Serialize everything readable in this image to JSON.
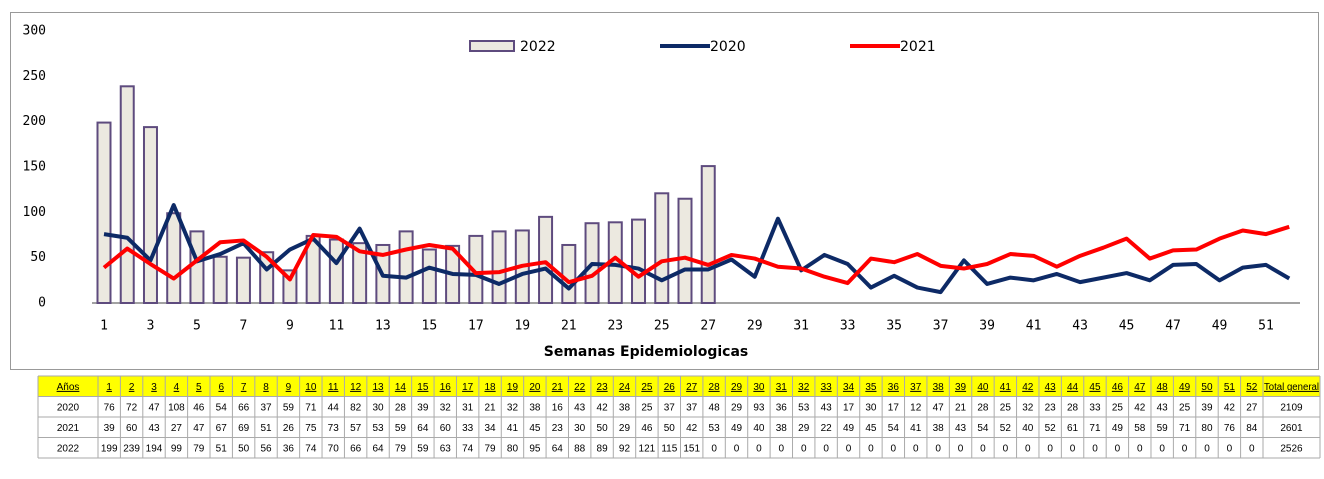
{
  "chart_data": {
    "type": "bar-line",
    "x_label": "Semanas Epidemiologicas",
    "categories": [
      1,
      null,
      3,
      null,
      5,
      null,
      7,
      null,
      9,
      null,
      11,
      null,
      13,
      null,
      15,
      null,
      17,
      null,
      19,
      null,
      21,
      null,
      23,
      null,
      25,
      null,
      27,
      null,
      29,
      null,
      31,
      null,
      33,
      null,
      35,
      null,
      37,
      null,
      39,
      null,
      41,
      null,
      43,
      null,
      45,
      null,
      47,
      null,
      49,
      null,
      51,
      null
    ],
    "ylim": [
      0,
      300
    ],
    "yticks": [
      0,
      50,
      100,
      150,
      200,
      250,
      300
    ],
    "series": [
      {
        "name": "2022",
        "kind": "bar",
        "color": "#ece9e0",
        "values": [
          199,
          239,
          194,
          99,
          79,
          51,
          50,
          56,
          36,
          74,
          70,
          66,
          64,
          79,
          59,
          63,
          74,
          79,
          80,
          95,
          64,
          88,
          89,
          92,
          121,
          115,
          151,
          0,
          0,
          0,
          0,
          0,
          0,
          0,
          0,
          0,
          0,
          0,
          0,
          0,
          0,
          0,
          0,
          0,
          0,
          0,
          0,
          0,
          0,
          0,
          0,
          0
        ]
      },
      {
        "name": "2020",
        "kind": "line",
        "color": "#0d2a66",
        "values": [
          76,
          72,
          47,
          108,
          46,
          54,
          66,
          37,
          59,
          71,
          44,
          82,
          30,
          28,
          39,
          32,
          31,
          21,
          32,
          38,
          16,
          43,
          42,
          38,
          25,
          37,
          37,
          48,
          29,
          93,
          36,
          53,
          43,
          17,
          30,
          17,
          12,
          47,
          21,
          28,
          25,
          32,
          23,
          28,
          33,
          25,
          42,
          43,
          25,
          39,
          42,
          27
        ]
      },
      {
        "name": "2021",
        "kind": "line",
        "color": "#ff0000",
        "values": [
          39,
          60,
          43,
          27,
          47,
          67,
          69,
          51,
          26,
          75,
          73,
          57,
          53,
          59,
          64,
          60,
          33,
          34,
          41,
          45,
          23,
          30,
          50,
          29,
          46,
          50,
          42,
          53,
          49,
          40,
          38,
          29,
          22,
          49,
          45,
          54,
          41,
          38,
          43,
          54,
          52,
          40,
          52,
          61,
          71,
          49,
          58,
          59,
          71,
          80,
          76,
          84
        ]
      }
    ]
  },
  "table": {
    "header": [
      "Años",
      "1",
      "2",
      "3",
      "4",
      "5",
      "6",
      "7",
      "8",
      "9",
      "10",
      "11",
      "12",
      "13",
      "14",
      "15",
      "16",
      "17",
      "18",
      "19",
      "20",
      "21",
      "22",
      "23",
      "24",
      "25",
      "26",
      "27",
      "28",
      "29",
      "30",
      "31",
      "32",
      "33",
      "34",
      "35",
      "36",
      "37",
      "38",
      "39",
      "40",
      "41",
      "42",
      "43",
      "44",
      "45",
      "46",
      "47",
      "48",
      "49",
      "50",
      "51",
      "52",
      "Total general"
    ],
    "rows": [
      [
        "2020",
        76,
        72,
        47,
        108,
        46,
        54,
        66,
        37,
        59,
        71,
        44,
        82,
        30,
        28,
        39,
        32,
        31,
        21,
        32,
        38,
        16,
        43,
        42,
        38,
        25,
        37,
        37,
        48,
        29,
        93,
        36,
        53,
        43,
        17,
        30,
        17,
        12,
        47,
        21,
        28,
        25,
        32,
        23,
        28,
        33,
        25,
        42,
        43,
        25,
        39,
        42,
        27,
        2109
      ],
      [
        "2021",
        39,
        60,
        43,
        27,
        47,
        67,
        69,
        51,
        26,
        75,
        73,
        57,
        53,
        59,
        64,
        60,
        33,
        34,
        41,
        45,
        23,
        30,
        50,
        29,
        46,
        50,
        42,
        53,
        49,
        40,
        38,
        29,
        22,
        49,
        45,
        54,
        41,
        38,
        43,
        54,
        52,
        40,
        52,
        61,
        71,
        49,
        58,
        59,
        71,
        80,
        76,
        84,
        2601
      ],
      [
        "2022",
        199,
        239,
        194,
        99,
        79,
        51,
        50,
        56,
        36,
        74,
        70,
        66,
        64,
        79,
        59,
        63,
        74,
        79,
        80,
        95,
        64,
        88,
        89,
        92,
        121,
        115,
        151,
        0,
        0,
        0,
        0,
        0,
        0,
        0,
        0,
        0,
        0,
        0,
        0,
        0,
        0,
        0,
        0,
        0,
        0,
        0,
        0,
        0,
        0,
        0,
        0,
        0,
        2526
      ]
    ]
  }
}
